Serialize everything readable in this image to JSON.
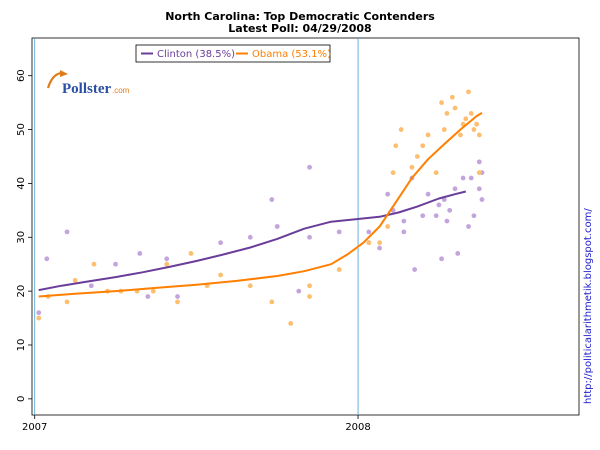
{
  "chart_data": {
    "type": "scatter",
    "title": "North Carolina: Top Democratic Contenders",
    "subtitle": "Latest Poll: 04/29/2008",
    "xlabel": "",
    "ylabel": "",
    "x_unit": "months since Jan 2007",
    "xlim": [
      -0.1,
      20.2
    ],
    "ylim": [
      -3,
      67
    ],
    "yticks": [
      0,
      10,
      20,
      30,
      40,
      50,
      60
    ],
    "xticks": [
      {
        "value": 0,
        "label": "2007"
      },
      {
        "value": 12,
        "label": "2008"
      }
    ],
    "vlines": [
      0,
      12
    ],
    "legend": {
      "position": "top-left"
    },
    "watermark": {
      "name": "Pollster",
      "suffix": ".com"
    },
    "side_label": "http://politicalarithmetik.blogspot.com/",
    "series": [
      {
        "name": "Clinton",
        "legend_label": "Clinton (38.5%)",
        "color": "#6a3d9a",
        "point_color": "#c2a5dc",
        "trend": [
          {
            "x": 0.15,
            "y": 20.2
          },
          {
            "x": 1.0,
            "y": 21.0
          },
          {
            "x": 2.0,
            "y": 21.8
          },
          {
            "x": 3.0,
            "y": 22.6
          },
          {
            "x": 4.0,
            "y": 23.5
          },
          {
            "x": 5.0,
            "y": 24.5
          },
          {
            "x": 6.0,
            "y": 25.6
          },
          {
            "x": 7.0,
            "y": 26.8
          },
          {
            "x": 8.0,
            "y": 28.1
          },
          {
            "x": 9.0,
            "y": 29.7
          },
          {
            "x": 10.0,
            "y": 31.6
          },
          {
            "x": 11.0,
            "y": 32.9
          },
          {
            "x": 12.0,
            "y": 33.4
          },
          {
            "x": 12.8,
            "y": 33.8
          },
          {
            "x": 13.5,
            "y": 34.6
          },
          {
            "x": 14.2,
            "y": 35.7
          },
          {
            "x": 15.0,
            "y": 37.2
          },
          {
            "x": 15.6,
            "y": 38.0
          },
          {
            "x": 16.0,
            "y": 38.5
          }
        ],
        "points": [
          {
            "x": 0.15,
            "y": 16
          },
          {
            "x": 0.45,
            "y": 26
          },
          {
            "x": 1.2,
            "y": 31
          },
          {
            "x": 2.1,
            "y": 21
          },
          {
            "x": 3.0,
            "y": 25
          },
          {
            "x": 3.9,
            "y": 27
          },
          {
            "x": 4.2,
            "y": 19
          },
          {
            "x": 4.9,
            "y": 26
          },
          {
            "x": 5.3,
            "y": 19
          },
          {
            "x": 6.9,
            "y": 29
          },
          {
            "x": 8.0,
            "y": 30
          },
          {
            "x": 8.8,
            "y": 37
          },
          {
            "x": 9.0,
            "y": 32
          },
          {
            "x": 9.8,
            "y": 20
          },
          {
            "x": 10.2,
            "y": 43
          },
          {
            "x": 10.2,
            "y": 30
          },
          {
            "x": 11.3,
            "y": 31
          },
          {
            "x": 12.4,
            "y": 31
          },
          {
            "x": 12.4,
            "y": 29
          },
          {
            "x": 12.8,
            "y": 28
          },
          {
            "x": 13.1,
            "y": 38
          },
          {
            "x": 13.3,
            "y": 35
          },
          {
            "x": 13.7,
            "y": 33
          },
          {
            "x": 13.7,
            "y": 31
          },
          {
            "x": 14.0,
            "y": 41
          },
          {
            "x": 14.1,
            "y": 24
          },
          {
            "x": 14.4,
            "y": 34
          },
          {
            "x": 14.6,
            "y": 38
          },
          {
            "x": 14.9,
            "y": 34
          },
          {
            "x": 15.0,
            "y": 36
          },
          {
            "x": 15.1,
            "y": 26
          },
          {
            "x": 15.2,
            "y": 37
          },
          {
            "x": 15.3,
            "y": 33
          },
          {
            "x": 15.4,
            "y": 35
          },
          {
            "x": 15.6,
            "y": 39
          },
          {
            "x": 15.7,
            "y": 27
          },
          {
            "x": 15.9,
            "y": 41
          },
          {
            "x": 16.1,
            "y": 32
          },
          {
            "x": 16.2,
            "y": 41
          },
          {
            "x": 16.3,
            "y": 34
          },
          {
            "x": 16.5,
            "y": 39
          },
          {
            "x": 16.5,
            "y": 44
          },
          {
            "x": 16.6,
            "y": 37
          },
          {
            "x": 16.6,
            "y": 42
          }
        ]
      },
      {
        "name": "Obama",
        "legend_label": "Obama (53.1%)",
        "color": "#ff7f00",
        "point_color": "#fdbf6f",
        "trend": [
          {
            "x": 0.15,
            "y": 19.0
          },
          {
            "x": 1.5,
            "y": 19.5
          },
          {
            "x": 3.0,
            "y": 20.0
          },
          {
            "x": 4.5,
            "y": 20.6
          },
          {
            "x": 6.0,
            "y": 21.2
          },
          {
            "x": 7.5,
            "y": 21.9
          },
          {
            "x": 9.0,
            "y": 22.8
          },
          {
            "x": 10.0,
            "y": 23.7
          },
          {
            "x": 11.0,
            "y": 25.0
          },
          {
            "x": 11.6,
            "y": 26.8
          },
          {
            "x": 12.2,
            "y": 29.0
          },
          {
            "x": 12.8,
            "y": 32.0
          },
          {
            "x": 13.4,
            "y": 36.5
          },
          {
            "x": 14.0,
            "y": 41.0
          },
          {
            "x": 14.6,
            "y": 44.5
          },
          {
            "x": 15.2,
            "y": 47.3
          },
          {
            "x": 15.8,
            "y": 50.0
          },
          {
            "x": 16.4,
            "y": 52.5
          },
          {
            "x": 16.6,
            "y": 53.1
          }
        ],
        "points": [
          {
            "x": 0.15,
            "y": 15
          },
          {
            "x": 0.5,
            "y": 19
          },
          {
            "x": 1.2,
            "y": 18
          },
          {
            "x": 1.5,
            "y": 22
          },
          {
            "x": 2.2,
            "y": 25
          },
          {
            "x": 2.7,
            "y": 20
          },
          {
            "x": 3.2,
            "y": 20
          },
          {
            "x": 3.8,
            "y": 20
          },
          {
            "x": 4.4,
            "y": 20
          },
          {
            "x": 4.9,
            "y": 25
          },
          {
            "x": 5.3,
            "y": 18
          },
          {
            "x": 5.8,
            "y": 27
          },
          {
            "x": 6.4,
            "y": 21
          },
          {
            "x": 6.9,
            "y": 23
          },
          {
            "x": 8.0,
            "y": 21
          },
          {
            "x": 8.8,
            "y": 18
          },
          {
            "x": 9.5,
            "y": 14
          },
          {
            "x": 10.2,
            "y": 21
          },
          {
            "x": 10.2,
            "y": 19
          },
          {
            "x": 11.3,
            "y": 24
          },
          {
            "x": 12.4,
            "y": 29
          },
          {
            "x": 12.8,
            "y": 29
          },
          {
            "x": 13.1,
            "y": 32
          },
          {
            "x": 13.3,
            "y": 42
          },
          {
            "x": 13.4,
            "y": 47
          },
          {
            "x": 13.6,
            "y": 50
          },
          {
            "x": 14.0,
            "y": 43
          },
          {
            "x": 14.2,
            "y": 45
          },
          {
            "x": 14.4,
            "y": 47
          },
          {
            "x": 14.6,
            "y": 49
          },
          {
            "x": 14.9,
            "y": 42
          },
          {
            "x": 15.1,
            "y": 55
          },
          {
            "x": 15.2,
            "y": 50
          },
          {
            "x": 15.3,
            "y": 53
          },
          {
            "x": 15.5,
            "y": 56
          },
          {
            "x": 15.6,
            "y": 54
          },
          {
            "x": 15.8,
            "y": 49
          },
          {
            "x": 15.9,
            "y": 51
          },
          {
            "x": 16.0,
            "y": 52
          },
          {
            "x": 16.1,
            "y": 57
          },
          {
            "x": 16.2,
            "y": 53
          },
          {
            "x": 16.3,
            "y": 50
          },
          {
            "x": 16.4,
            "y": 51
          },
          {
            "x": 16.5,
            "y": 49
          },
          {
            "x": 16.5,
            "y": 42
          }
        ]
      }
    ]
  }
}
